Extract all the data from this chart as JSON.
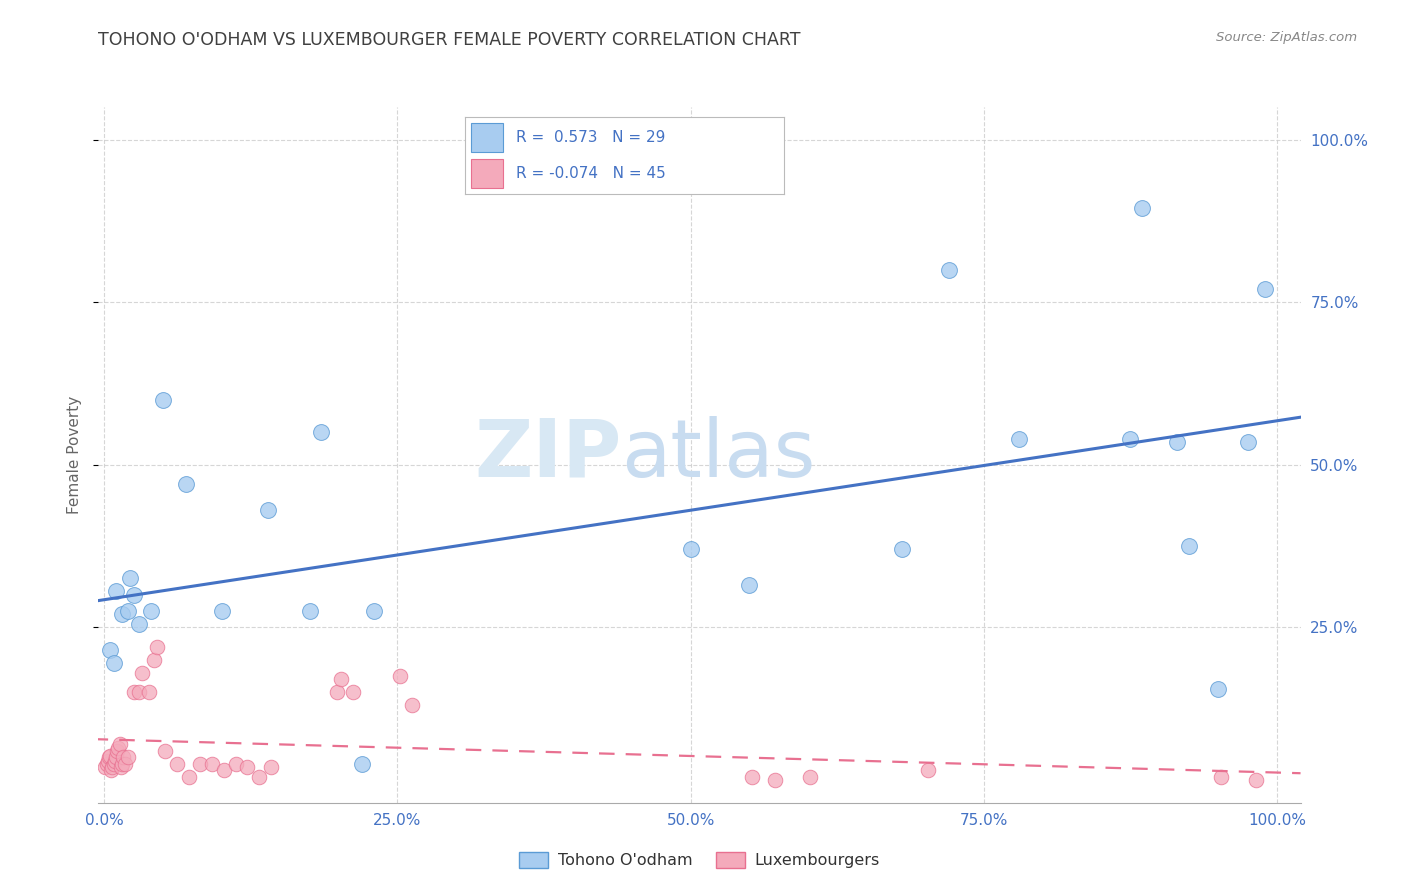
{
  "title": "TOHONO O'ODHAM VS LUXEMBOURGER FEMALE POVERTY CORRELATION CHART",
  "source": "Source: ZipAtlas.com",
  "ylabel": "Female Poverty",
  "xlabel": "",
  "xlim": [
    -0.005,
    1.02
  ],
  "ylim": [
    -0.02,
    1.05
  ],
  "xtick_labels": [
    "0.0%",
    "25.0%",
    "50.0%",
    "75.0%",
    "100.0%"
  ],
  "xtick_vals": [
    0.0,
    0.25,
    0.5,
    0.75,
    1.0
  ],
  "ytick_labels": [
    "25.0%",
    "50.0%",
    "75.0%",
    "100.0%"
  ],
  "ytick_vals": [
    0.25,
    0.5,
    0.75,
    1.0
  ],
  "legend_labels": [
    "Tohono O'odham",
    "Luxembourgers"
  ],
  "color_blue": "#A8CCF0",
  "color_blue_edge": "#5B9BD5",
  "color_pink": "#F4AABB",
  "color_pink_edge": "#E87090",
  "line_blue": "#4472C4",
  "line_pink": "#E87090",
  "axis_blue": "#4472C4",
  "background_color": "#FFFFFF",
  "grid_color": "#CCCCCC",
  "title_color": "#404040",
  "source_color": "#888888",
  "watermark_zip": "ZIP",
  "watermark_atlas": "atlas",
  "tohono_x": [
    0.005,
    0.008,
    0.01,
    0.015,
    0.02,
    0.022,
    0.025,
    0.03,
    0.04,
    0.05,
    0.07,
    0.1,
    0.14,
    0.175,
    0.185,
    0.22,
    0.23,
    0.5,
    0.55,
    0.68,
    0.72,
    0.78,
    0.875,
    0.885,
    0.915,
    0.925,
    0.95,
    0.975,
    0.99
  ],
  "tohono_y": [
    0.215,
    0.195,
    0.305,
    0.27,
    0.275,
    0.325,
    0.3,
    0.255,
    0.275,
    0.6,
    0.47,
    0.275,
    0.43,
    0.275,
    0.55,
    0.04,
    0.275,
    0.37,
    0.315,
    0.37,
    0.8,
    0.54,
    0.54,
    0.895,
    0.535,
    0.375,
    0.155,
    0.535,
    0.77
  ],
  "lux_x": [
    0.001,
    0.002,
    0.003,
    0.004,
    0.005,
    0.006,
    0.007,
    0.008,
    0.009,
    0.01,
    0.011,
    0.012,
    0.013,
    0.014,
    0.015,
    0.016,
    0.018,
    0.02,
    0.025,
    0.03,
    0.032,
    0.038,
    0.042,
    0.045,
    0.052,
    0.062,
    0.072,
    0.082,
    0.092,
    0.102,
    0.112,
    0.122,
    0.132,
    0.142,
    0.198,
    0.202,
    0.212,
    0.252,
    0.262,
    0.552,
    0.572,
    0.602,
    0.702,
    0.952,
    0.982
  ],
  "lux_y": [
    0.035,
    0.04,
    0.045,
    0.05,
    0.052,
    0.03,
    0.035,
    0.04,
    0.045,
    0.05,
    0.06,
    0.065,
    0.07,
    0.035,
    0.04,
    0.05,
    0.04,
    0.05,
    0.15,
    0.15,
    0.18,
    0.15,
    0.2,
    0.22,
    0.06,
    0.04,
    0.02,
    0.04,
    0.04,
    0.03,
    0.04,
    0.035,
    0.02,
    0.035,
    0.15,
    0.17,
    0.15,
    0.175,
    0.13,
    0.02,
    0.015,
    0.02,
    0.03,
    0.02,
    0.015
  ]
}
